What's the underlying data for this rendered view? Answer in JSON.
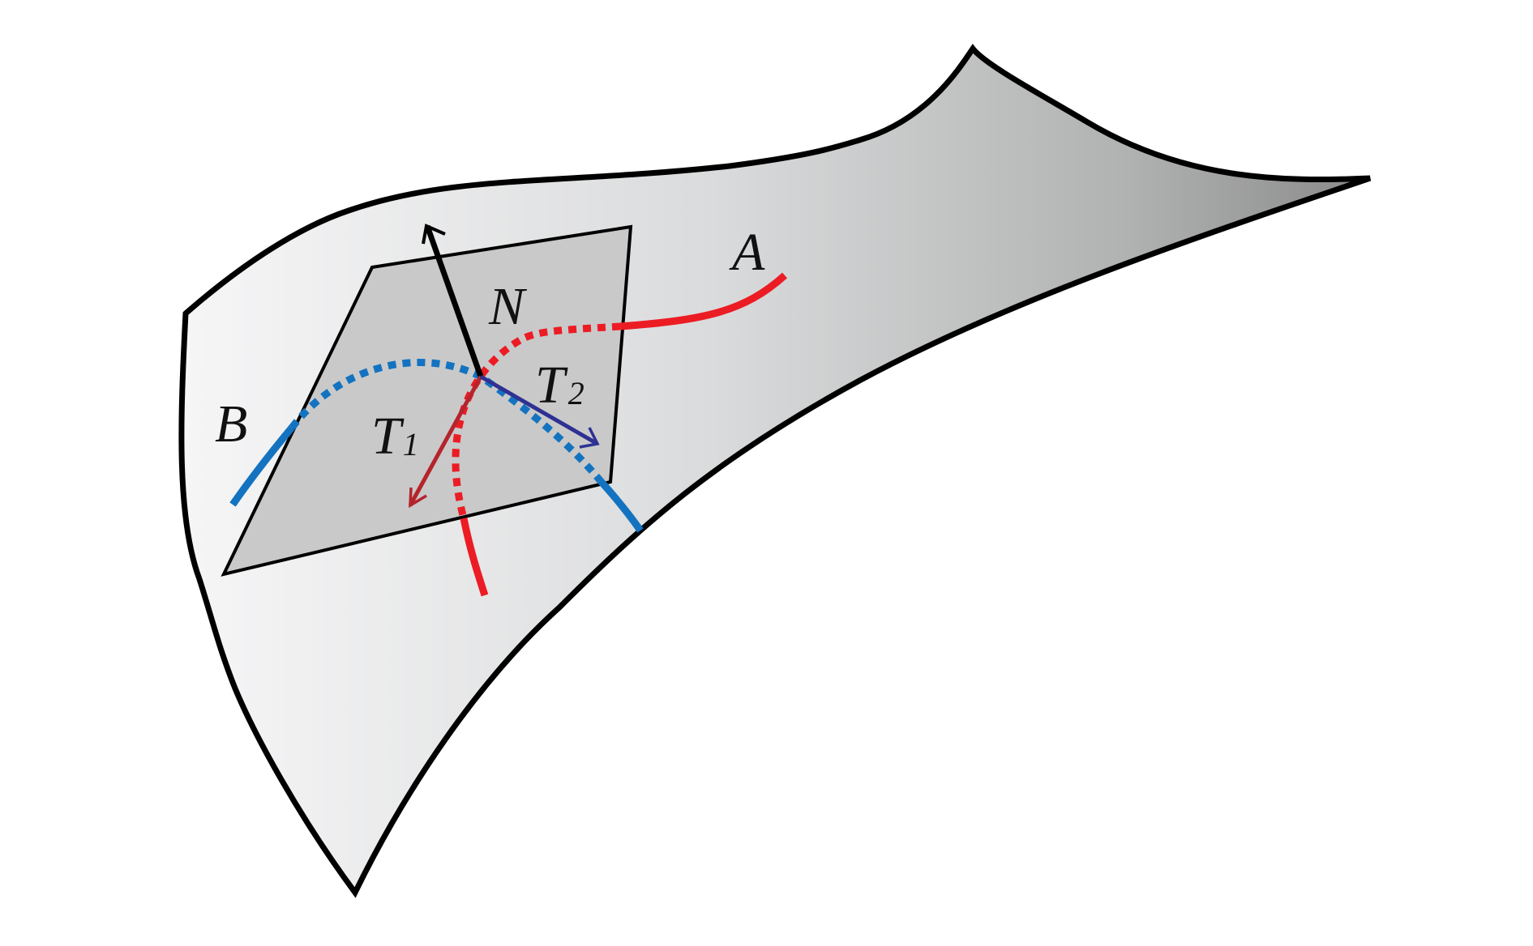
{
  "labels": {
    "A": "A",
    "B": "B",
    "N": "N",
    "T1": {
      "base": "T",
      "sub": "1"
    },
    "T2": {
      "base": "T",
      "sub": "2"
    }
  },
  "colors": {
    "surface_light": "#f4f4f5",
    "surface_mid": "#c4c5c6",
    "surface_dark": "#8d8d8d",
    "tangent_plane": "#c8c8c8",
    "outline": "#000000",
    "curve_A": "#ec1c24",
    "curve_B": "#1373c0",
    "vector_T1": "#b5242c",
    "vector_T2": "#2e3192",
    "vector_N": "#000000"
  }
}
